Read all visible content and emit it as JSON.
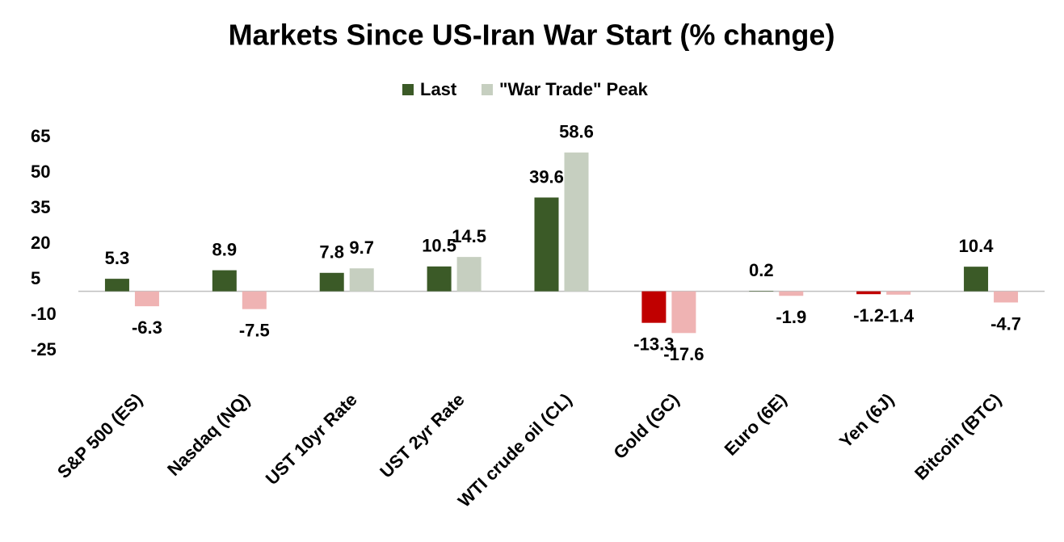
{
  "chart_data": {
    "type": "bar",
    "title": "Markets Since US-Iran War Start (% change)",
    "categories": [
      "S&P 500 (ES)",
      "Nasdaq (NQ)",
      "UST 10yr Rate",
      "UST 2yr Rate",
      "WTI crude oil (CL)",
      "Gold (GC)",
      "Euro (6E)",
      "Yen (6J)",
      "Bitcoin (BTC)"
    ],
    "series": [
      {
        "name": "Last",
        "color": "#3b5a27",
        "negative_color": "#c00000",
        "values": [
          5.3,
          8.9,
          7.8,
          10.5,
          39.6,
          -13.3,
          0.2,
          -1.2,
          10.4
        ]
      },
      {
        "name": "\"War Trade\" Peak",
        "color": "#c6cfc0",
        "negative_color": "#efb3b3",
        "values": [
          -6.3,
          -7.5,
          9.7,
          14.5,
          58.6,
          -17.6,
          -1.9,
          -1.4,
          -4.7
        ]
      }
    ],
    "ylim": [
      -25,
      65
    ],
    "yticks": [
      65,
      50,
      35,
      20,
      5,
      -10,
      -25
    ],
    "grid": false,
    "legend": "top"
  }
}
